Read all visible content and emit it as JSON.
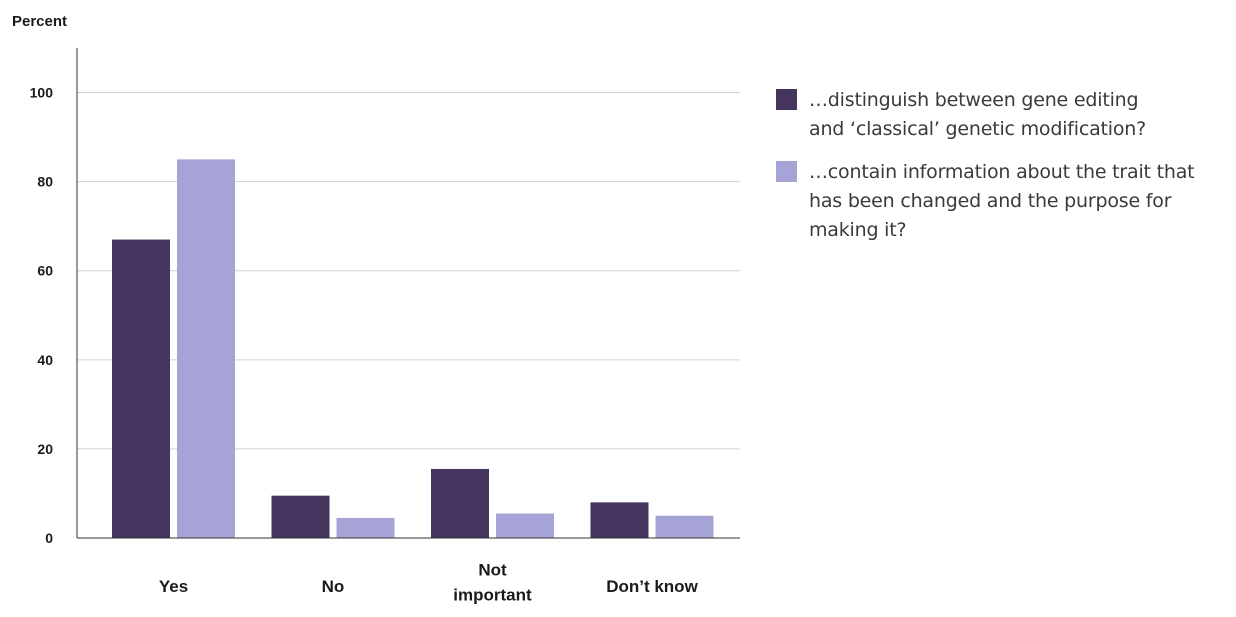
{
  "chart_data": {
    "type": "bar",
    "title": "",
    "ylabel": "Percent",
    "xlabel": "",
    "ylim": [
      0,
      110
    ],
    "yticks": [
      0,
      20,
      40,
      60,
      80,
      100
    ],
    "grid": true,
    "legend_position": "right",
    "categories": [
      "Yes",
      "No",
      "Not important",
      "Don’t know"
    ],
    "category_lines": [
      [
        "Yes"
      ],
      [
        "No"
      ],
      [
        "Not",
        "important"
      ],
      [
        "Don’t know"
      ]
    ],
    "series": [
      {
        "name": "…distinguish between gene editing and ‘classical’ genetic modification?",
        "name_lines": [
          "…distinguish between gene editing",
          "and ‘classical’ genetic modification?"
        ],
        "color": "#45345e",
        "values": [
          67,
          9.5,
          15.5,
          8
        ]
      },
      {
        "name": "…contain information about the trait that has been changed and the purpose for making it?",
        "name_lines": [
          "…contain information about the trait that",
          "has been changed and the purpose for",
          "making it?"
        ],
        "color": "#a6a4d6",
        "values": [
          85,
          4.5,
          5.5,
          5
        ]
      }
    ]
  }
}
